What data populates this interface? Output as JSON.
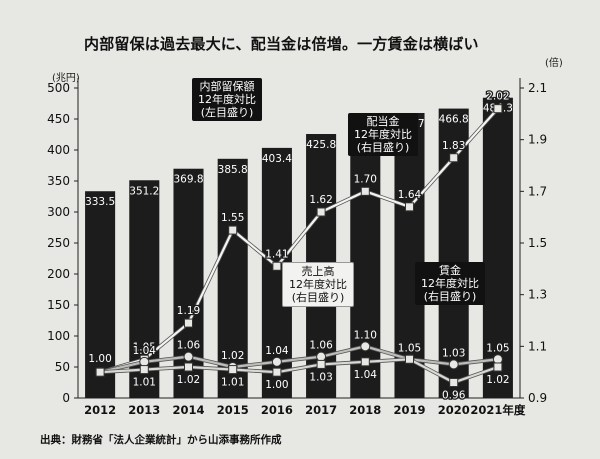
{
  "title": "内部留保は過去最大に、配当金は倍増。一方賃金は横ばい",
  "source": "出典：財務省「法人企業統計」から山添事務所作成",
  "chart_data": {
    "type": "bar",
    "categories": [
      "2012",
      "2013",
      "2014",
      "2015",
      "2016",
      "2017",
      "2018",
      "2019",
      "2020",
      "2021年度"
    ],
    "left_axis": {
      "unit": "(兆円)",
      "ylim": [
        0,
        500
      ],
      "ticks": [
        0,
        50,
        100,
        150,
        200,
        250,
        300,
        350,
        400,
        450,
        500
      ]
    },
    "right_axis": {
      "unit": "(倍)",
      "ylim": [
        0.9,
        2.1
      ],
      "ticks": [
        0.9,
        1.1,
        1.3,
        1.5,
        1.7,
        1.9,
        2.1
      ]
    },
    "series": [
      {
        "label_lines": [
          "内部留保額",
          "12年度対比",
          "(左目盛り)"
        ],
        "kind": "bar",
        "axis": "left",
        "values": [
          333.5,
          351.2,
          369.8,
          385.8,
          403.4,
          425.8,
          449.1,
          459.7,
          466.8,
          484.3
        ],
        "labels": [
          "333.5",
          "351.2",
          "369.8",
          "385.8",
          "403.4",
          "425.8",
          "449.1",
          "459.7",
          "466.8",
          "484.3"
        ]
      },
      {
        "label_lines": [
          "配当金",
          "12年度対比",
          "(右目盛り)"
        ],
        "kind": "line",
        "axis": "right",
        "values": [
          1.0,
          1.05,
          1.19,
          1.55,
          1.41,
          1.62,
          1.7,
          1.64,
          1.83,
          2.02
        ],
        "labels": [
          "1.00",
          "1.05",
          "1.19",
          "1.55",
          "1.41",
          "1.62",
          "1.70",
          "1.64",
          "1.83",
          "2.02"
        ]
      },
      {
        "label_lines": [
          "売上高",
          "12年度対比",
          "(右目盛り)"
        ],
        "kind": "line",
        "axis": "right",
        "values": [
          1.0,
          1.04,
          1.06,
          1.02,
          1.04,
          1.06,
          1.1,
          1.05,
          1.03,
          1.05
        ],
        "labels": [
          "",
          "1.04",
          "1.06",
          "1.02",
          "1.04",
          "1.06",
          "1.10",
          "1.05",
          "1.03",
          "1.05"
        ]
      },
      {
        "label_lines": [
          "賃金",
          "12年度対比",
          "(右目盛り)"
        ],
        "kind": "line",
        "axis": "right",
        "values": [
          1.0,
          1.01,
          1.02,
          1.01,
          1.0,
          1.03,
          1.04,
          1.05,
          0.96,
          1.02
        ],
        "labels": [
          "",
          "1.01",
          "1.02",
          "1.01",
          "1.00",
          "1.03",
          "1.04",
          "",
          "0.96",
          "1.02"
        ]
      }
    ],
    "grid": false,
    "legend": "callouts"
  }
}
